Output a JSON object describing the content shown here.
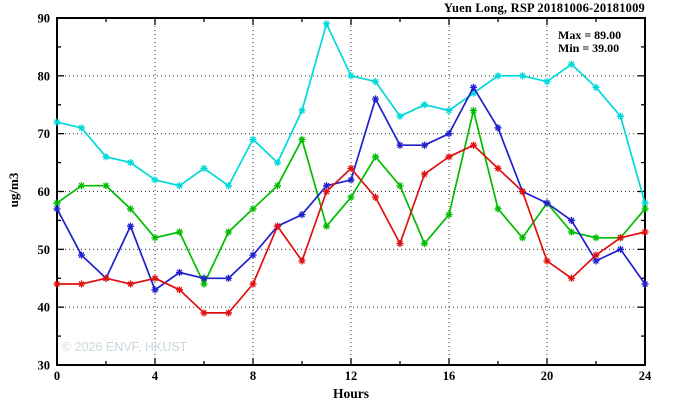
{
  "header": {
    "title": "Yuen Long, RSP 20181006-20181009"
  },
  "legend": {
    "max_label": "Max = 89.00",
    "min_label": "Min = 39.00"
  },
  "watermark": {
    "text": "© 2026 ENVF, HKUST"
  },
  "chart_data": {
    "type": "line",
    "title": "Yuen Long, RSP 20181006-20181009",
    "xlabel": "Hours",
    "ylabel": "ug/m3",
    "xlim": [
      0,
      24
    ],
    "ylim": [
      30,
      90
    ],
    "x_ticks_major": [
      0,
      4,
      8,
      12,
      16,
      20,
      24
    ],
    "x_tick_minor_step": 2,
    "y_ticks_major": [
      30,
      40,
      50,
      60,
      70,
      80,
      90
    ],
    "y_tick_minor_step": 5,
    "grid": "dotted lines at major ticks",
    "legend_position": "top-right inside plot",
    "stats": {
      "max": 89.0,
      "min": 39.0
    },
    "x": [
      0,
      1,
      2,
      3,
      4,
      5,
      6,
      7,
      8,
      9,
      10,
      11,
      12,
      13,
      14,
      15,
      16,
      17,
      18,
      19,
      20,
      21,
      22,
      23,
      24
    ],
    "series": [
      {
        "name": "cyan-series",
        "color": "#00d9d9",
        "values": [
          72,
          71,
          66,
          65,
          62,
          61,
          64,
          61,
          69,
          65,
          74,
          89,
          80,
          79,
          73,
          75,
          74,
          77,
          80,
          80,
          79,
          82,
          78,
          73,
          58
        ]
      },
      {
        "name": "green-series",
        "color": "#00bd00",
        "values": [
          58,
          61,
          61,
          57,
          52,
          53,
          44,
          53,
          57,
          61,
          69,
          54,
          59,
          66,
          61,
          51,
          56,
          74,
          57,
          52,
          58,
          53,
          52,
          52,
          57
        ]
      },
      {
        "name": "blue-series",
        "color": "#2020cc",
        "values": [
          57,
          49,
          45,
          54,
          43,
          46,
          45,
          45,
          49,
          54,
          56,
          61,
          62,
          76,
          68,
          68,
          70,
          78,
          71,
          60,
          58,
          55,
          48,
          50,
          44
        ]
      },
      {
        "name": "red-series",
        "color": "#e01010",
        "values": [
          44,
          44,
          45,
          44,
          45,
          43,
          39,
          39,
          44,
          54,
          48,
          60,
          64,
          59,
          51,
          63,
          66,
          68,
          64,
          60,
          48,
          45,
          49,
          52,
          53
        ]
      }
    ]
  }
}
